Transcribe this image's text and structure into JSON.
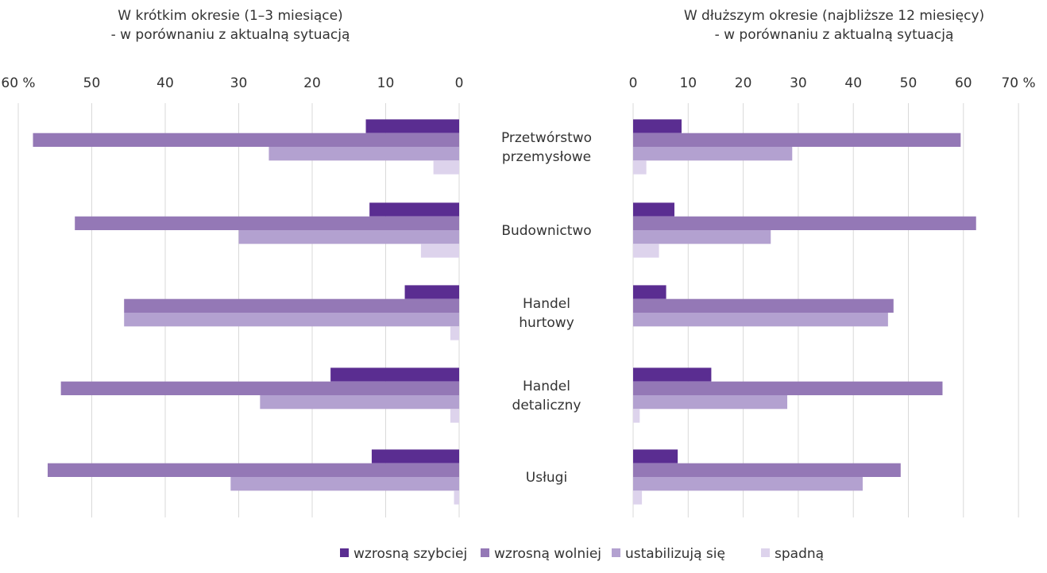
{
  "left_panel": {
    "title_line1": "W krótkim okresie (1–3 miesiące)",
    "title_line2": "- w porównaniu z aktualną sytuacją"
  },
  "right_panel": {
    "title_line1": "W dłuższym okresie (najbliższe 12 miesięcy)",
    "title_line2": "- w porównaniu z aktualną sytuacją"
  },
  "legend": [
    {
      "label": "wzrosną szybciej",
      "color": "#5a2d91"
    },
    {
      "label": "wzrosną wolniej",
      "color": "#9478b6"
    },
    {
      "label": "ustabilizują się",
      "color": "#b3a1d0"
    },
    {
      "label": "spadną",
      "color": "#ddd3ec"
    }
  ],
  "chart_data": [
    {
      "type": "bar",
      "orientation": "horizontal-reversed",
      "title": "W krótkim okresie (1–3 miesiące) - w porównaniu z aktualną sytuacją",
      "categories": [
        [
          "Przetwórstwo",
          "przemysłowe"
        ],
        [
          "Budownictwo"
        ],
        [
          "Handel",
          "hurtowy"
        ],
        [
          "Handel",
          "detaliczny"
        ],
        [
          "Usługi"
        ]
      ],
      "xlim": [
        0,
        60
      ],
      "ticks": [
        "60 %",
        "50",
        "40",
        "30",
        "20",
        "10",
        "0"
      ],
      "grid": true,
      "series": [
        {
          "name": "wzrosną szybciej",
          "color": "#5a2d91",
          "values": [
            12.7,
            12.2,
            7.4,
            17.5,
            11.9
          ]
        },
        {
          "name": "wzrosną wolniej",
          "color": "#9478b6",
          "values": [
            58.0,
            52.3,
            45.6,
            54.2,
            56.0
          ]
        },
        {
          "name": "ustabilizują się",
          "color": "#b3a1d0",
          "values": [
            25.9,
            30.0,
            45.6,
            27.1,
            31.1
          ]
        },
        {
          "name": "spadną",
          "color": "#ddd3ec",
          "values": [
            3.5,
            5.2,
            1.2,
            1.2,
            0.7
          ]
        }
      ]
    },
    {
      "type": "bar",
      "orientation": "horizontal",
      "title": "W dłuższym okresie (najbliższe 12 miesięcy) - w porównaniu z aktualną sytuacją",
      "categories": [
        [
          "Przetwórstwo",
          "przemysłowe"
        ],
        [
          "Budownictwo"
        ],
        [
          "Handel",
          "hurtowy"
        ],
        [
          "Handel",
          "detaliczny"
        ],
        [
          "Usługi"
        ]
      ],
      "xlim": [
        0,
        70
      ],
      "ticks": [
        "0",
        "10",
        "20",
        "30",
        "40",
        "50",
        "60",
        "70 %"
      ],
      "grid": true,
      "series": [
        {
          "name": "wzrosną szybciej",
          "color": "#5a2d91",
          "values": [
            8.8,
            7.5,
            6.0,
            14.2,
            8.1
          ]
        },
        {
          "name": "wzrosną wolniej",
          "color": "#9478b6",
          "values": [
            59.5,
            62.3,
            47.3,
            56.2,
            48.6
          ]
        },
        {
          "name": "ustabilizują się",
          "color": "#b3a1d0",
          "values": [
            28.9,
            25.0,
            46.3,
            28.0,
            41.7
          ]
        },
        {
          "name": "spadną",
          "color": "#ddd3ec",
          "values": [
            2.4,
            4.7,
            0.0,
            1.2,
            1.6
          ]
        }
      ]
    }
  ]
}
